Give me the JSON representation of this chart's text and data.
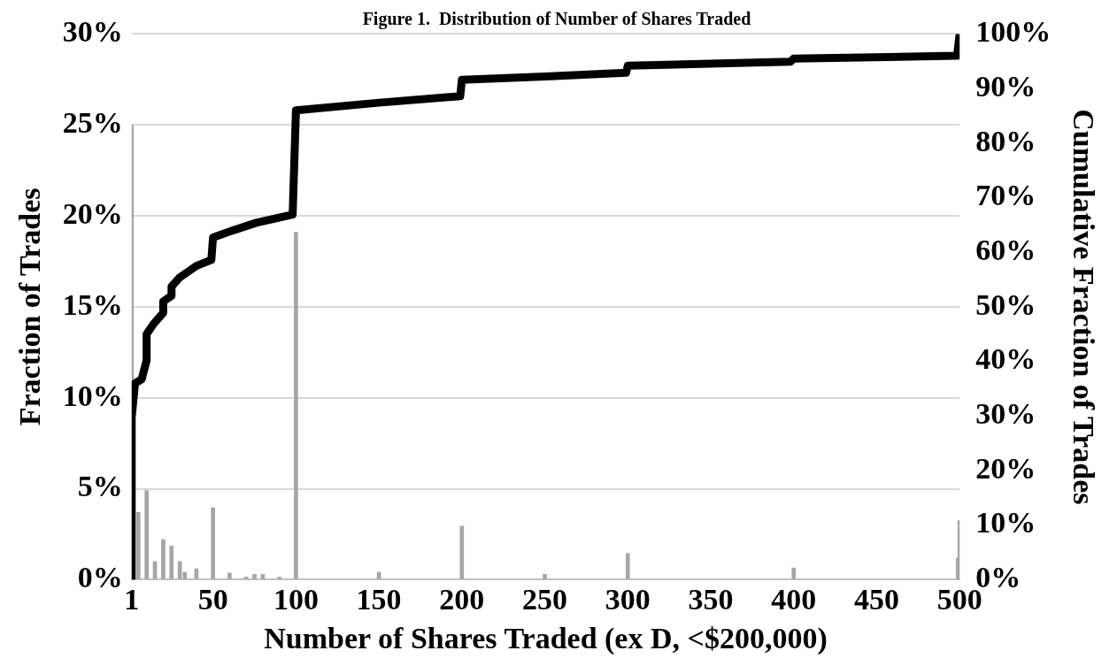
{
  "chart_data": {
    "type": "bar",
    "title": "Figure 1.  Distribution of Number of Shares Traded",
    "xlabel": "Number of Shares Traded (ex D, <$200,000)",
    "ylabel": "Fraction of Trades",
    "y2label": "Cumulative Fraction of Trades",
    "xlim": [
      1,
      500
    ],
    "xticks": [
      1,
      50,
      100,
      150,
      200,
      250,
      300,
      350,
      400,
      450,
      500
    ],
    "ylim": [
      0,
      30
    ],
    "yticks": [
      {
        "value": 0,
        "label": "0%"
      },
      {
        "value": 5,
        "label": "5%"
      },
      {
        "value": 10,
        "label": "10%"
      },
      {
        "value": 15,
        "label": "15%"
      },
      {
        "value": 20,
        "label": "20%"
      },
      {
        "value": 25,
        "label": "25%"
      },
      {
        "value": 30,
        "label": "30%"
      }
    ],
    "y2lim": [
      0,
      100
    ],
    "y2ticks": [
      {
        "value": 0,
        "label": "0%"
      },
      {
        "value": 10,
        "label": "10%"
      },
      {
        "value": 20,
        "label": "20%"
      },
      {
        "value": 30,
        "label": "30%"
      },
      {
        "value": 40,
        "label": "40%"
      },
      {
        "value": 50,
        "label": "50%"
      },
      {
        "value": 60,
        "label": "60%"
      },
      {
        "value": 70,
        "label": "70%"
      },
      {
        "value": 80,
        "label": "80%"
      },
      {
        "value": 90,
        "label": "90%"
      },
      {
        "value": 100,
        "label": "100%"
      }
    ],
    "grid": "y",
    "legend": false,
    "series": [
      {
        "color": "#a6a6a6",
        "x": [
          1,
          5,
          10,
          15,
          20,
          25,
          30,
          33,
          40,
          50,
          60,
          70,
          75,
          80,
          90,
          100,
          150,
          200,
          250,
          300,
          350,
          400,
          450,
          499,
          500
        ],
        "values": [
          25,
          3.7,
          4.9,
          1,
          2.2,
          1.85,
          1,
          0.4,
          0.6,
          3.95,
          0.37,
          0.15,
          0.3,
          0.3,
          0.15,
          19.1,
          0.4,
          2.95,
          0.3,
          1.45,
          null,
          0.65,
          null,
          1.2,
          3.25
        ]
      },
      {
        "type": "line",
        "axis": "y2",
        "color": "#000000",
        "marker": "none",
        "x": [
          1,
          1,
          3,
          7,
          10,
          10,
          14,
          20,
          20,
          25,
          25,
          30,
          40,
          49,
          50,
          61,
          76,
          98,
          100,
          150,
          199,
          200,
          250,
          299,
          300,
          398,
          400,
          498.5,
          500
        ],
        "values": [
          0,
          29.8,
          36,
          36.7,
          40.2,
          45,
          46.8,
          48.9,
          51,
          52,
          53.7,
          55.4,
          57.5,
          58.6,
          62.7,
          63.9,
          65.4,
          66.9,
          86,
          87.4,
          88.6,
          91.6,
          92.2,
          92.9,
          94.2,
          94.9,
          95.5,
          96,
          100
        ]
      }
    ]
  }
}
